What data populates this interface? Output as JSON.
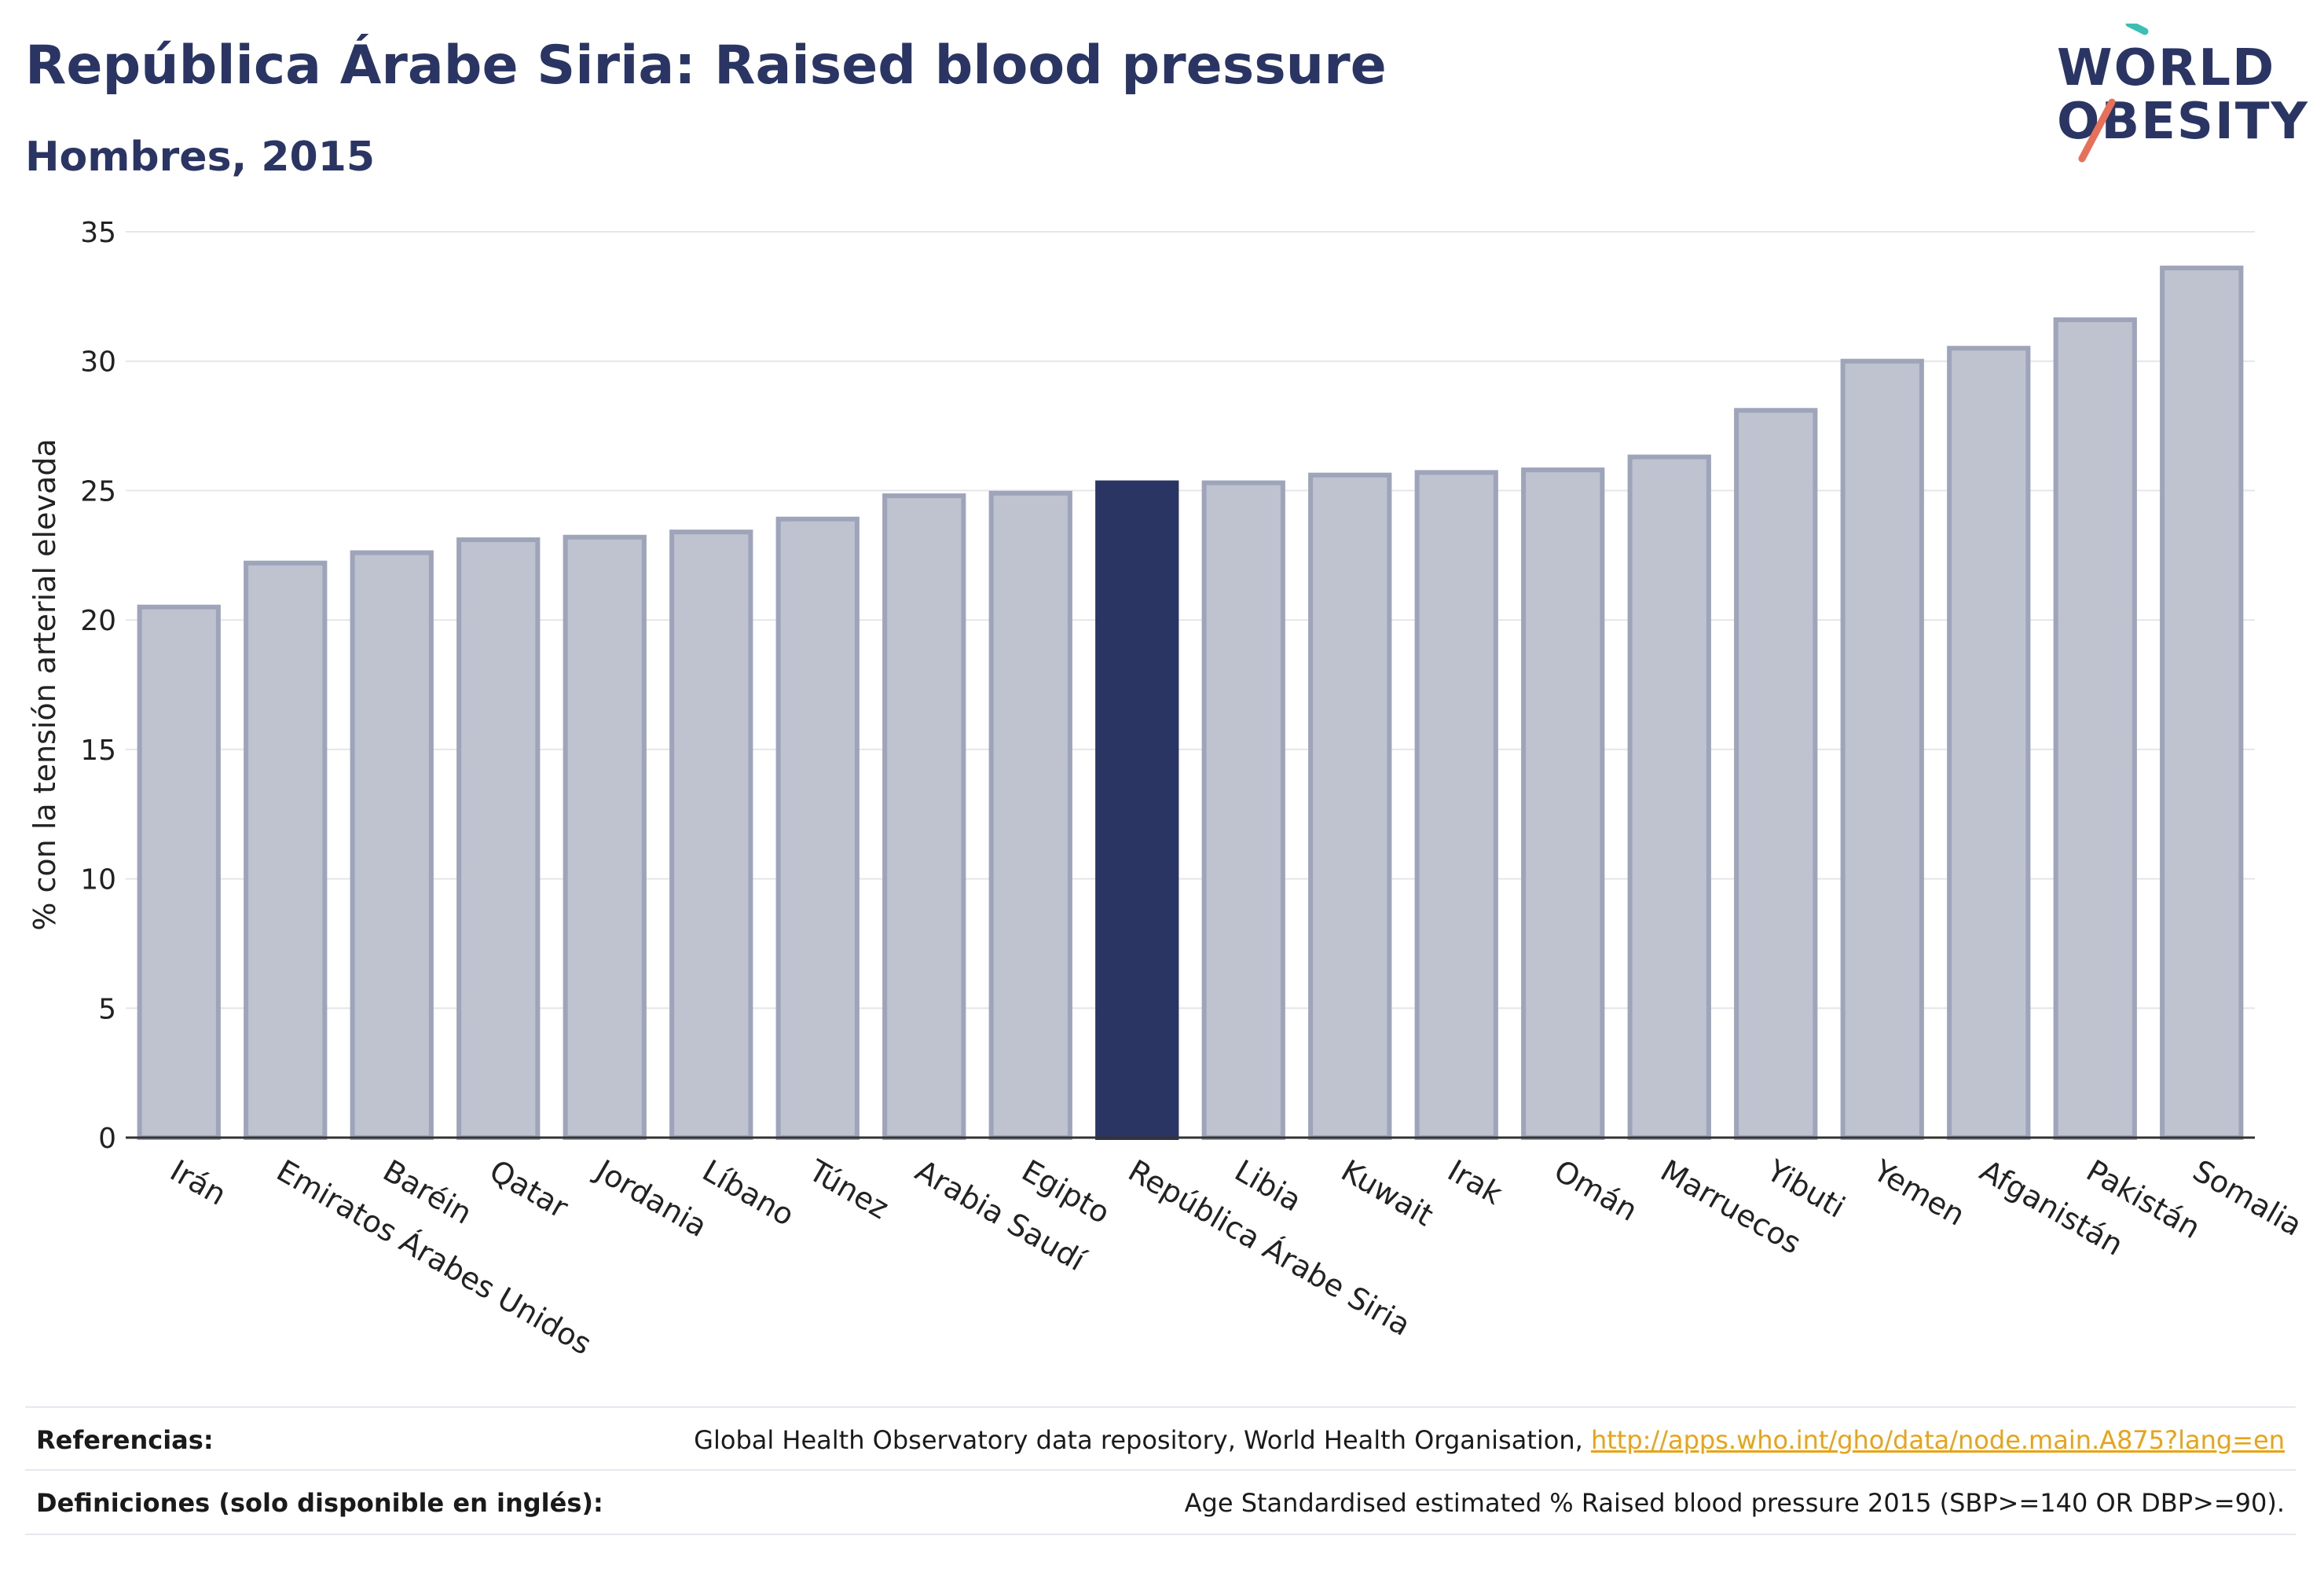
{
  "header": {
    "title": "República Árabe Siria: Raised blood pressure",
    "subtitle": "Hombres, 2015"
  },
  "logo": {
    "line1": "WORLD",
    "line2": "OBESITY"
  },
  "colors": {
    "highlight": "#2a3563",
    "bar_fill": "#bfc2cf",
    "bar_stroke": "#9ea4ba",
    "logo_teal": "#3bbfb5",
    "logo_coral": "#e8705a",
    "link": "#e8a317"
  },
  "chart_data": {
    "type": "bar",
    "title": "República Árabe Siria: Raised blood pressure",
    "subtitle": "Hombres, 2015",
    "xlabel": "",
    "ylabel": "% con la tensión arterial elevada",
    "ylim": [
      0,
      35
    ],
    "yticks": [
      0,
      5,
      10,
      15,
      20,
      25,
      30,
      35
    ],
    "grid": true,
    "highlight": "República Árabe Siria",
    "categories": [
      "Irán",
      "Emiratos Árabes Unidos",
      "Baréin",
      "Qatar",
      "Jordania",
      "Líbano",
      "Túnez",
      "Arabia Saudí",
      "Egipto",
      "República Árabe Siria",
      "Libia",
      "Kuwait",
      "Irak",
      "Omán",
      "Marruecos",
      "Yibuti",
      "Yemen",
      "Afganistán",
      "Pakistán",
      "Somalia"
    ],
    "values": [
      20.5,
      22.2,
      22.6,
      23.1,
      23.2,
      23.4,
      23.9,
      24.8,
      24.9,
      25.3,
      25.3,
      25.6,
      25.7,
      25.8,
      26.3,
      28.1,
      30.0,
      30.5,
      31.6,
      33.6
    ]
  },
  "references": {
    "label": "Referencias:",
    "text": "Global Health Observatory data repository, World Health Organisation, ",
    "link": "http://apps.who.int/gho/data/node.main.A875?lang=en"
  },
  "definitions": {
    "label": "Definiciones (solo disponible en inglés):",
    "text": "Age Standardised estimated % Raised blood pressure 2015 (SBP>=140 OR DBP>=90)."
  }
}
